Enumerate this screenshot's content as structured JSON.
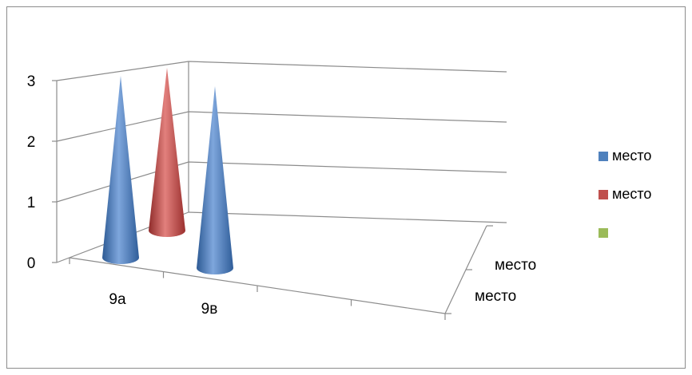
{
  "chart_data": {
    "type": "3d-cone-bar",
    "title": "",
    "xlabel": "",
    "ylabel": "",
    "categories": [
      "9а",
      "9в",
      ""
    ],
    "series": [
      {
        "name": "место",
        "color": "#4f81bd",
        "values": [
          3,
          3,
          null
        ]
      },
      {
        "name": "место",
        "color": "#c0504d",
        "values": [
          3,
          null,
          null
        ]
      },
      {
        "name": "",
        "color": "#9bbb59",
        "values": [
          null,
          null,
          null
        ]
      }
    ],
    "depth_labels": [
      "место",
      "место"
    ],
    "yticks": [
      "0",
      "1",
      "2",
      "3"
    ],
    "ylim": [
      0,
      3
    ],
    "grid": true,
    "legend": "right"
  }
}
